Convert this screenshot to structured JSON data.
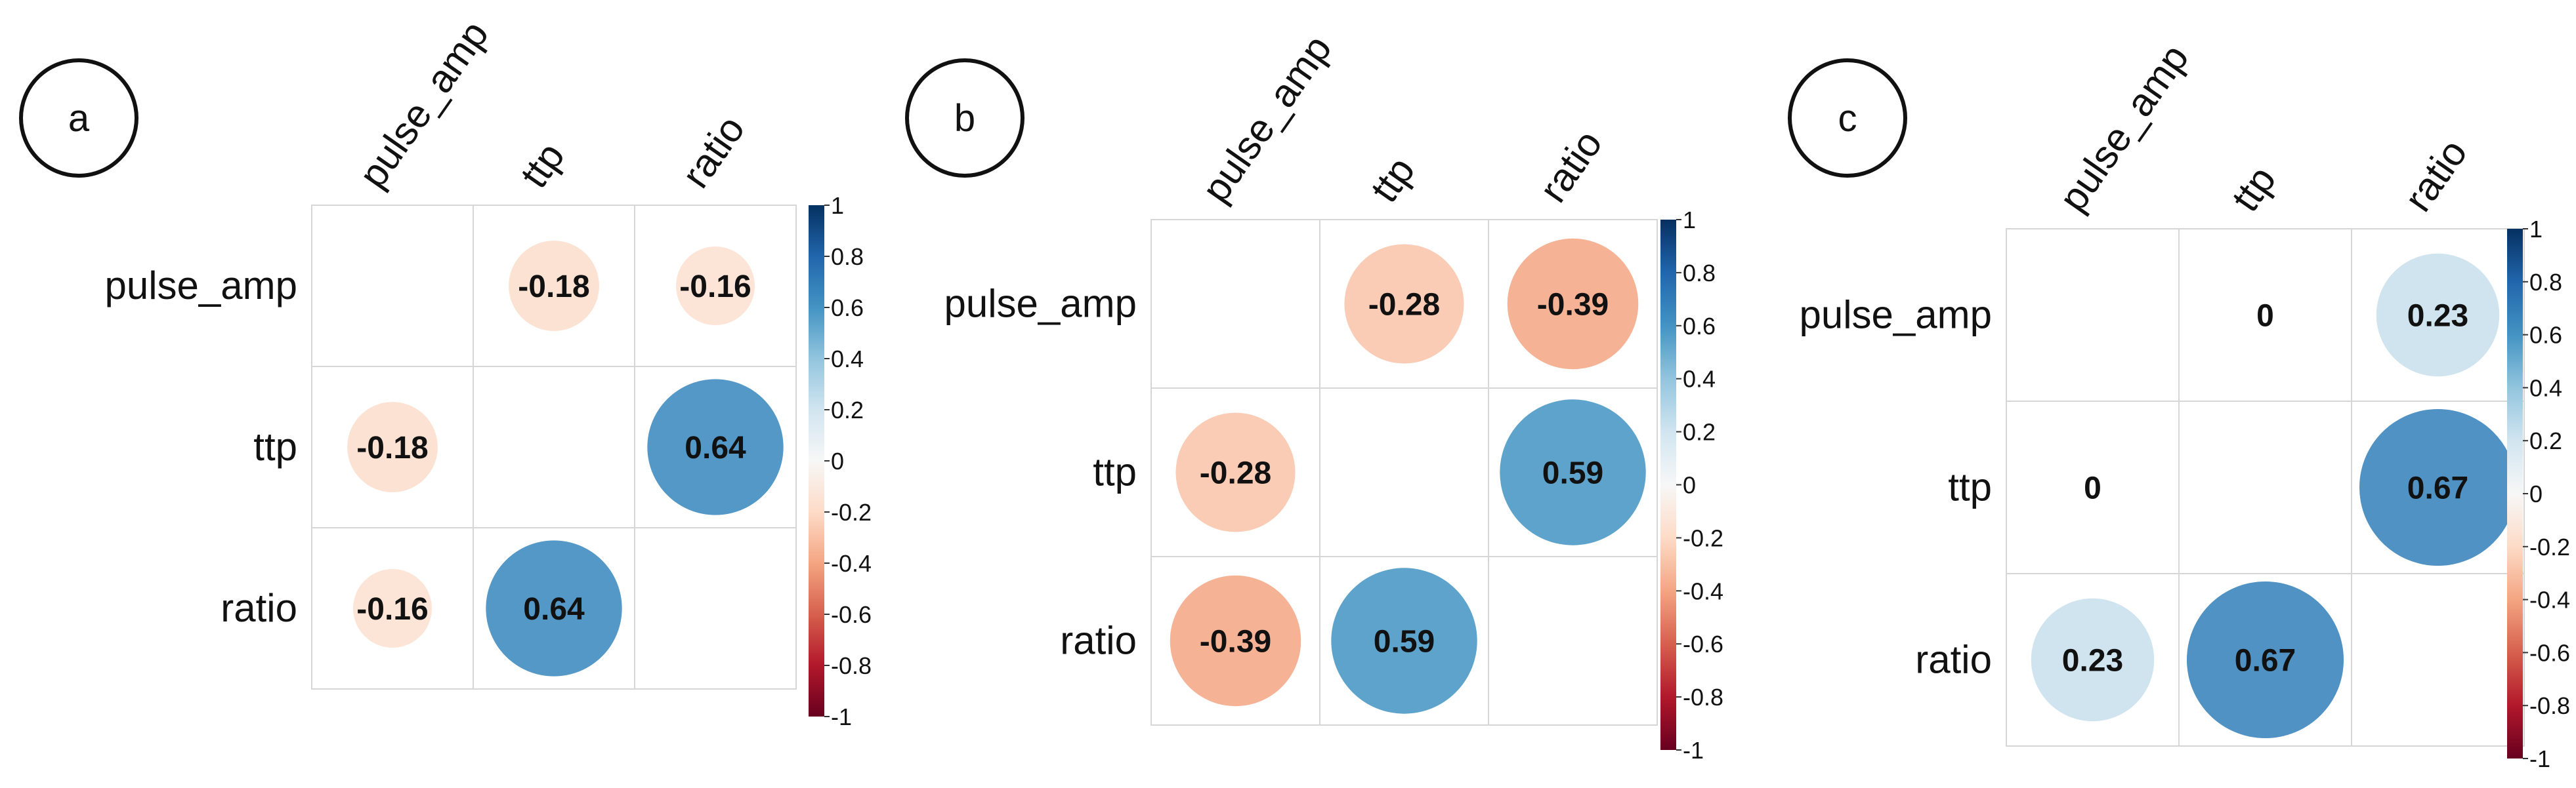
{
  "chart_data": [
    {
      "type": "heatmap",
      "panel_label": "a",
      "variables": [
        "pulse_amp",
        "ttp",
        "ratio"
      ],
      "matrix": [
        [
          null,
          -0.18,
          -0.16
        ],
        [
          -0.18,
          null,
          0.64
        ],
        [
          -0.16,
          0.64,
          null
        ]
      ],
      "value_labels": [
        [
          "",
          "-0.18",
          "-0.16"
        ],
        [
          "-0.18",
          "",
          "0.64"
        ],
        [
          "-0.16",
          "0.64",
          ""
        ]
      ],
      "colorbar_range": [
        -1,
        1
      ],
      "colorbar_ticks": [
        "1",
        "0.8",
        "0.6",
        "0.4",
        "0.2",
        "0",
        "-0.2",
        "-0.4",
        "-0.6",
        "-0.8",
        "-1"
      ]
    },
    {
      "type": "heatmap",
      "panel_label": "b",
      "variables": [
        "pulse_amp",
        "ttp",
        "ratio"
      ],
      "matrix": [
        [
          null,
          -0.28,
          -0.39
        ],
        [
          -0.28,
          null,
          0.59
        ],
        [
          -0.39,
          0.59,
          null
        ]
      ],
      "value_labels": [
        [
          "",
          "-0.28",
          "-0.39"
        ],
        [
          "-0.28",
          "",
          "0.59"
        ],
        [
          "-0.39",
          "0.59",
          ""
        ]
      ],
      "colorbar_range": [
        -1,
        1
      ],
      "colorbar_ticks": [
        "1",
        "0.8",
        "0.6",
        "0.4",
        "0.2",
        "0",
        "-0.2",
        "-0.4",
        "-0.6",
        "-0.8",
        "-1"
      ]
    },
    {
      "type": "heatmap",
      "panel_label": "c",
      "variables": [
        "pulse_amp",
        "ttp",
        "ratio"
      ],
      "matrix": [
        [
          null,
          0,
          0.23
        ],
        [
          0,
          null,
          0.67
        ],
        [
          0.23,
          0.67,
          null
        ]
      ],
      "value_labels": [
        [
          "",
          "0",
          "0.23"
        ],
        [
          "0",
          "",
          "0.67"
        ],
        [
          "0.23",
          "0.67",
          ""
        ]
      ],
      "colorbar_range": [
        -1,
        1
      ],
      "colorbar_ticks": [
        "1",
        "0.8",
        "0.6",
        "0.4",
        "0.2",
        "0",
        "-0.2",
        "-0.4",
        "-0.6",
        "-0.8",
        "-1"
      ]
    }
  ]
}
